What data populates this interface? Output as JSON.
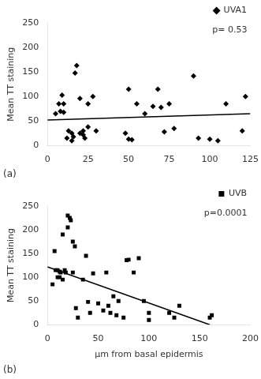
{
  "chart_data": [
    {
      "type": "scatter",
      "title": "(a)",
      "ylabel": "Mean TT staining",
      "xlim": [
        0,
        125
      ],
      "ylim": [
        0,
        250
      ],
      "xticks": [
        0,
        25,
        50,
        75,
        100,
        125
      ],
      "yticks": [
        0,
        50,
        100,
        150,
        200,
        250
      ],
      "grid": false,
      "legend": "upper right",
      "annotations": [
        "p= 0.53"
      ],
      "series": [
        {
          "name": "UVA1",
          "type": "scatter",
          "marker": "diamond",
          "color": "#000000",
          "x": [
            5,
            7,
            8,
            9,
            10,
            10,
            12,
            13,
            15,
            15,
            16,
            17,
            18,
            20,
            20,
            22,
            22,
            23,
            25,
            25,
            28,
            30,
            48,
            50,
            50,
            52,
            55,
            60,
            65,
            68,
            70,
            72,
            75,
            78,
            90,
            93,
            100,
            105,
            110,
            120,
            122
          ],
          "values": [
            65,
            85,
            70,
            103,
            85,
            68,
            15,
            30,
            25,
            10,
            18,
            148,
            163,
            25,
            96,
            30,
            22,
            15,
            85,
            38,
            100,
            30,
            25,
            115,
            13,
            12,
            85,
            65,
            80,
            115,
            78,
            28,
            85,
            35,
            142,
            15,
            13,
            10,
            85,
            30,
            100
          ]
        },
        {
          "type": "line",
          "color": "#000000",
          "x": [
            0,
            125
          ],
          "values": [
            52,
            65
          ]
        }
      ]
    },
    {
      "type": "scatter",
      "title": "(b)",
      "ylabel": "Mean TT staining",
      "xlabel": "μm from basal epidermis",
      "xlim": [
        0,
        200
      ],
      "ylim": [
        0,
        250
      ],
      "xticks": [
        0,
        50,
        100,
        150,
        200
      ],
      "yticks": [
        0,
        50,
        100,
        150,
        200,
        250
      ],
      "grid": false,
      "legend": "upper right",
      "annotations": [
        "p=0.0001"
      ],
      "series": [
        {
          "name": "UVB",
          "type": "scatter",
          "marker": "square",
          "color": "#000000",
          "x": [
            5,
            7,
            8,
            10,
            10,
            12,
            12,
            13,
            15,
            15,
            17,
            18,
            20,
            20,
            22,
            23,
            25,
            25,
            27,
            28,
            30,
            35,
            38,
            40,
            42,
            45,
            50,
            55,
            58,
            60,
            62,
            65,
            68,
            70,
            75,
            78,
            80,
            85,
            90,
            95,
            100,
            100,
            120,
            125,
            130,
            160,
            162
          ],
          "values": [
            85,
            155,
            115,
            100,
            115,
            112,
            100,
            110,
            190,
            95,
            115,
            110,
            230,
            205,
            225,
            220,
            175,
            110,
            165,
            35,
            15,
            95,
            145,
            48,
            25,
            108,
            45,
            30,
            110,
            40,
            25,
            60,
            20,
            50,
            15,
            136,
            137,
            110,
            140,
            50,
            10,
            25,
            25,
            15,
            40,
            15,
            20
          ]
        },
        {
          "type": "line",
          "color": "#000000",
          "x": [
            0,
            160
          ],
          "values": [
            122,
            0
          ]
        }
      ]
    }
  ]
}
